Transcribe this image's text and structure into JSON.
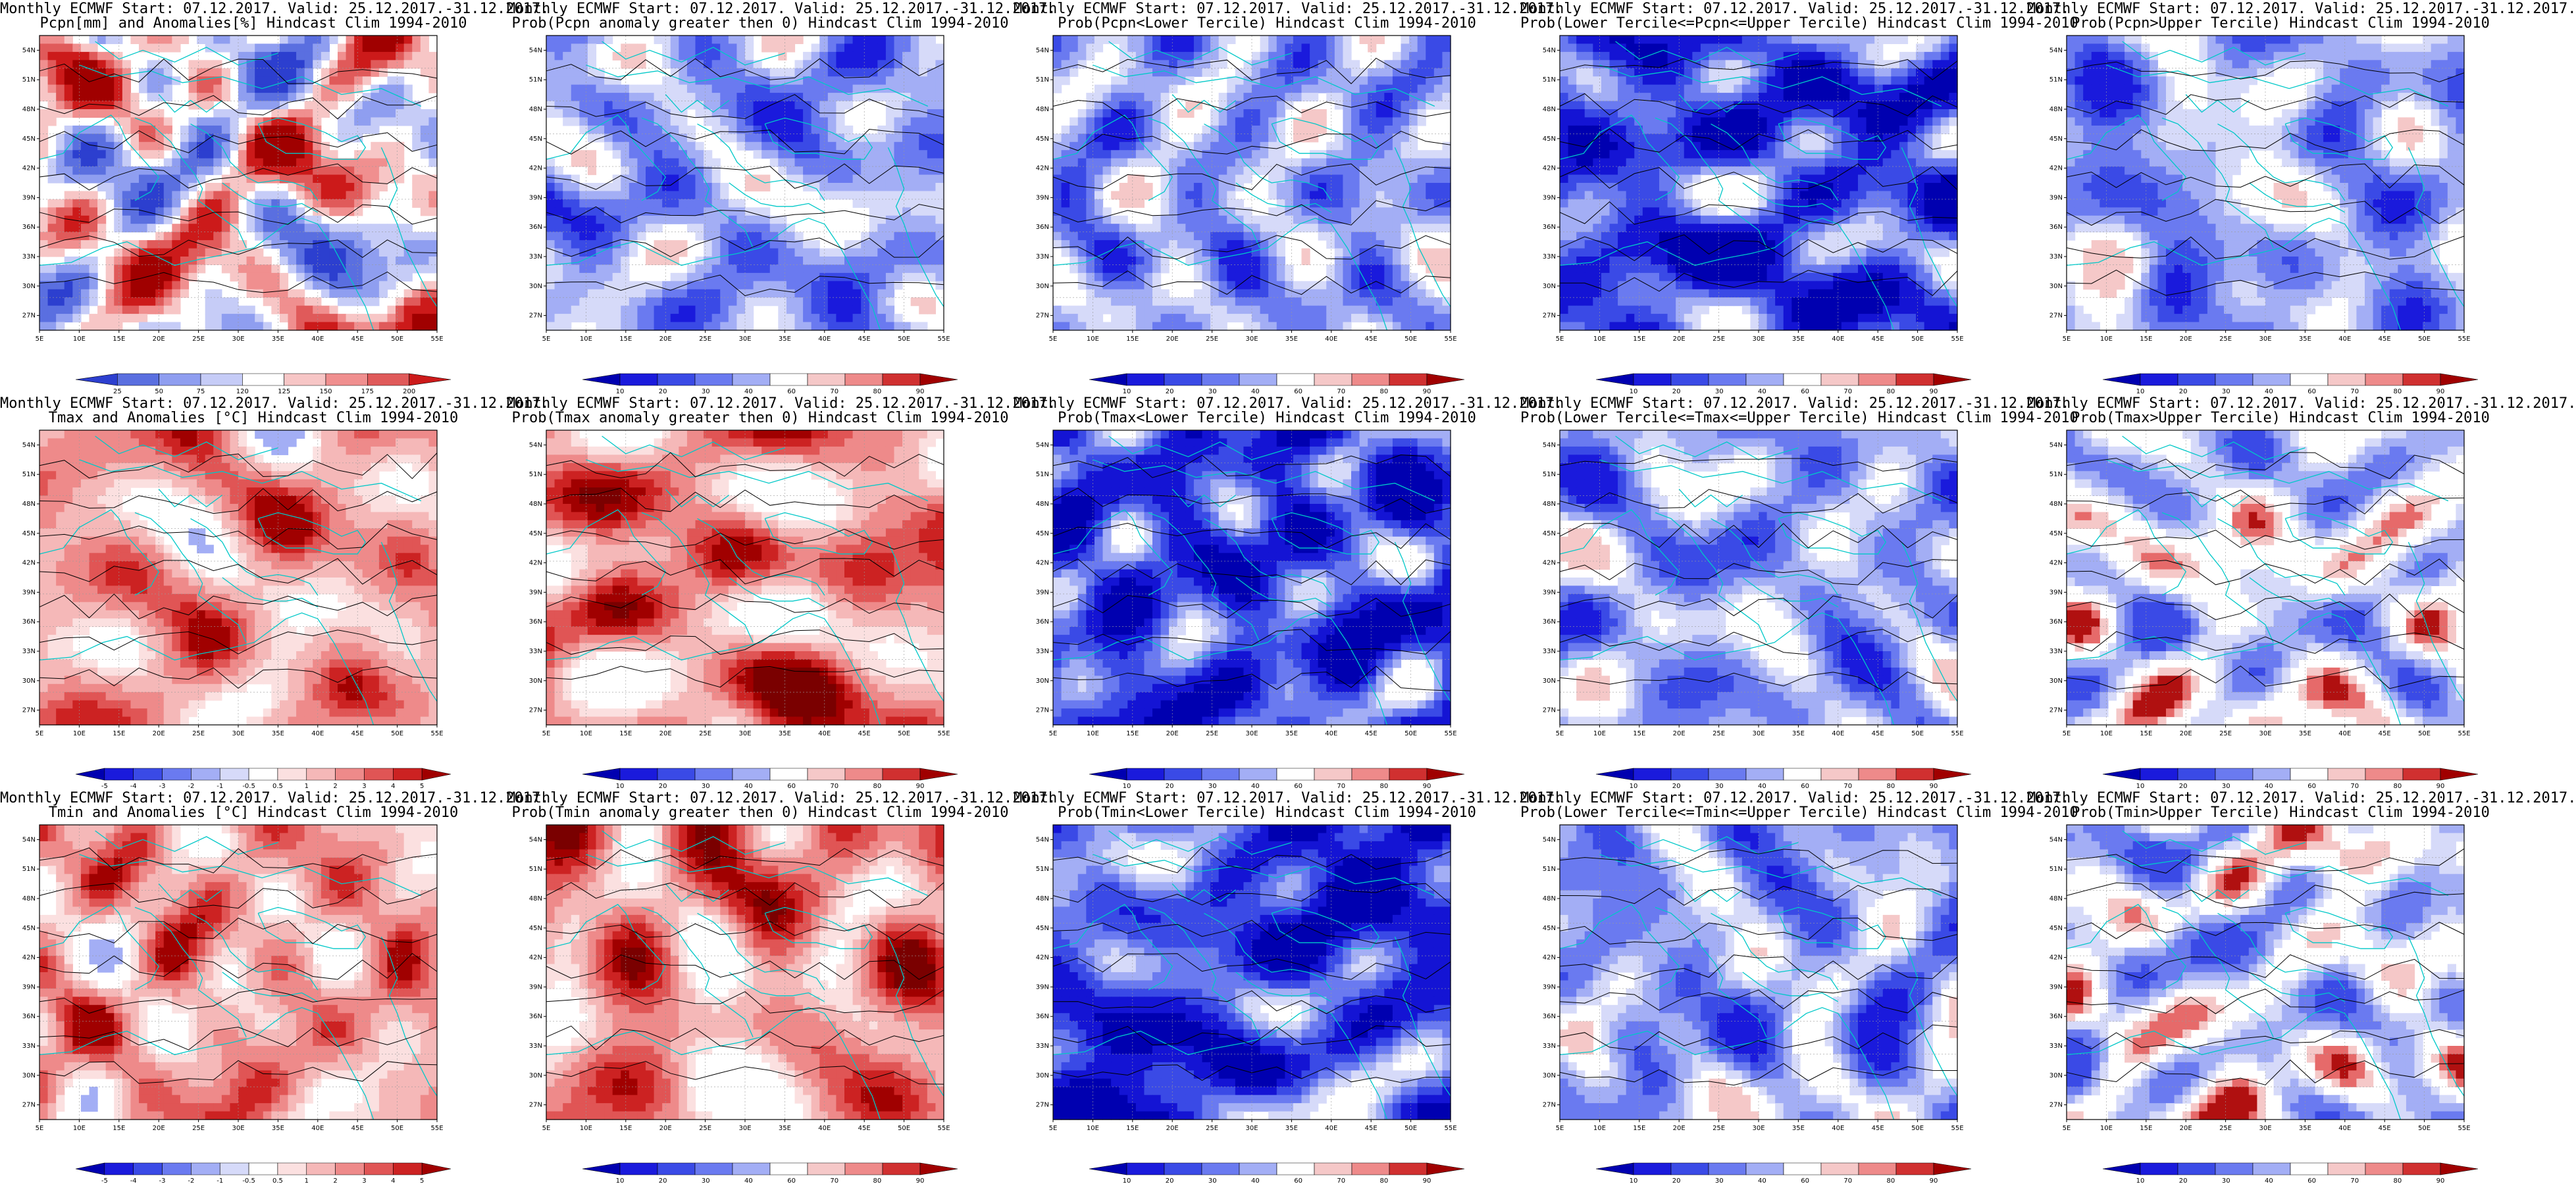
{
  "panels": [
    {
      "row": 0,
      "col": 0,
      "t1": "Monthly ECMWF Start: 07.12.2017. Valid: 25.12.2017.-31.12.2017.",
      "t2": "Pcpn[mm] and Anomalies[%] Hindcast Clim 1994-2010",
      "scheme": "pcpn_anom",
      "cb": [
        "25",
        "50",
        "75",
        "120",
        "125",
        "150",
        "175",
        "200"
      ]
    },
    {
      "row": 0,
      "col": 1,
      "t1": "Monthly ECMWF Start: 07.12.2017. Valid: 25.12.2017.-31.12.2017.",
      "t2": "Prob(Pcpn anomaly greater then 0) Hindcast Clim 1994-2010",
      "scheme": "prob_cool",
      "cb": [
        "10",
        "20",
        "30",
        "40",
        "60",
        "70",
        "80",
        "90"
      ]
    },
    {
      "row": 0,
      "col": 2,
      "t1": "Monthly ECMWF Start: 07.12.2017. Valid: 25.12.2017.-31.12.2017.",
      "t2": "Prob(Pcpn<Lower Tercile) Hindcast Clim 1994-2010",
      "scheme": "prob_cool",
      "cb": [
        "10",
        "20",
        "30",
        "40",
        "60",
        "70",
        "80",
        "90"
      ]
    },
    {
      "row": 0,
      "col": 3,
      "t1": "Monthly ECMWF Start: 07.12.2017. Valid: 25.12.2017.-31.12.2017.",
      "t2": "Prob(Lower Tercile<=Pcpn<=Upper Tercile) Hindcast Clim 1994-2010",
      "scheme": "prob_vcool",
      "cb": [
        "10",
        "20",
        "30",
        "40",
        "60",
        "70",
        "80",
        "90"
      ]
    },
    {
      "row": 0,
      "col": 4,
      "t1": "Monthly ECMWF Start: 07.12.2017. Valid: 25.12.2017.-31.12.2017.",
      "t2": "Prob(Pcpn>Upper Tercile) Hindcast Clim 1994-2010",
      "scheme": "prob_cool",
      "cb": [
        "10",
        "20",
        "30",
        "40",
        "60",
        "70",
        "80",
        "90"
      ]
    },
    {
      "row": 1,
      "col": 0,
      "t1": "Monthly ECMWF Start: 07.12.2017. Valid: 25.12.2017.-31.12.2017.",
      "t2": "Tmax and Anomalies [°C] Hindcast Clim 1994-2010",
      "scheme": "t_anom",
      "cb": [
        "-5",
        "-4",
        "-3",
        "-2",
        "-1",
        "-0.5",
        "0.5",
        "1",
        "2",
        "3",
        "4",
        "5"
      ]
    },
    {
      "row": 1,
      "col": 1,
      "t1": "Monthly ECMWF Start: 07.12.2017. Valid: 25.12.2017.-31.12.2017.",
      "t2": "Prob(Tmax anomaly greater then 0) Hindcast Clim 1994-2010",
      "scheme": "prob_warm",
      "cb": [
        "10",
        "20",
        "30",
        "40",
        "60",
        "70",
        "80",
        "90"
      ]
    },
    {
      "row": 1,
      "col": 2,
      "t1": "Monthly ECMWF Start: 07.12.2017. Valid: 25.12.2017.-31.12.2017.",
      "t2": "Prob(Tmax<Lower Tercile) Hindcast Clim 1994-2010",
      "scheme": "prob_vcool",
      "cb": [
        "10",
        "20",
        "30",
        "40",
        "60",
        "70",
        "80",
        "90"
      ]
    },
    {
      "row": 1,
      "col": 3,
      "t1": "Monthly ECMWF Start: 07.12.2017. Valid: 25.12.2017.-31.12.2017.",
      "t2": "Prob(Lower Tercile<=Tmax<=Upper Tercile) Hindcast Clim 1994-2010",
      "scheme": "prob_cool",
      "cb": [
        "10",
        "20",
        "30",
        "40",
        "60",
        "70",
        "80",
        "90"
      ]
    },
    {
      "row": 1,
      "col": 4,
      "t1": "Monthly ECMWF Start: 07.12.2017. Valid: 25.12.2017.-31.12.2017.",
      "t2": "Prob(Tmax>Upper Tercile) Hindcast Clim 1994-2010",
      "scheme": "prob_mixed",
      "cb": [
        "10",
        "20",
        "30",
        "40",
        "60",
        "70",
        "80",
        "90"
      ]
    },
    {
      "row": 2,
      "col": 0,
      "t1": "Monthly ECMWF Start: 07.12.2017. Valid: 25.12.2017.-31.12.2017.",
      "t2": "Tmin and Anomalies [°C] Hindcast Clim 1994-2010",
      "scheme": "t_anom",
      "cb": [
        "-5",
        "-4",
        "-3",
        "-2",
        "-1",
        "-0.5",
        "0.5",
        "1",
        "2",
        "3",
        "4",
        "5"
      ]
    },
    {
      "row": 2,
      "col": 1,
      "t1": "Monthly ECMWF Start: 07.12.2017. Valid: 25.12.2017.-31.12.2017.",
      "t2": "Prob(Tmin anomaly greater then 0) Hindcast Clim 1994-2010",
      "scheme": "prob_warm",
      "cb": [
        "10",
        "20",
        "30",
        "40",
        "60",
        "70",
        "80",
        "90"
      ]
    },
    {
      "row": 2,
      "col": 2,
      "t1": "Monthly ECMWF Start: 07.12.2017. Valid: 25.12.2017.-31.12.2017.",
      "t2": "Prob(Tmin<Lower Tercile) Hindcast Clim 1994-2010",
      "scheme": "prob_vcool",
      "cb": [
        "10",
        "20",
        "30",
        "40",
        "60",
        "70",
        "80",
        "90"
      ]
    },
    {
      "row": 2,
      "col": 3,
      "t1": "Monthly ECMWF Start: 07.12.2017. Valid: 25.12.2017.-31.12.2017.",
      "t2": "Prob(Lower Tercile<=Tmin<=Upper Tercile) Hindcast Clim 1994-2010",
      "scheme": "prob_cool",
      "cb": [
        "10",
        "20",
        "30",
        "40",
        "60",
        "70",
        "80",
        "90"
      ]
    },
    {
      "row": 2,
      "col": 4,
      "t1": "Monthly ECMWF Start: 07.12.2017. Valid: 25.12.2017.-31.12.2017.",
      "t2": "Prob(Tmin>Upper Tercile) Hindcast Clim 1994-2010",
      "scheme": "prob_mixed",
      "cb": [
        "10",
        "20",
        "30",
        "40",
        "60",
        "70",
        "80",
        "90"
      ]
    }
  ],
  "lon_labels": [
    "5E",
    "10E",
    "15E",
    "20E",
    "25E",
    "30E",
    "35E",
    "40E",
    "45E",
    "50E",
    "55E"
  ],
  "lat_labels": [
    "54N",
    "51N",
    "48N",
    "45N",
    "42N",
    "39N",
    "36N",
    "33N",
    "30N",
    "27N"
  ],
  "schemes": {
    "pcpn_anom": {
      "colors": [
        "#2c3fcf",
        "#5a6fe0",
        "#8f9ef0",
        "#c6ccf7",
        "#ffffff",
        "#f7c6c6",
        "#f08f8f",
        "#e05a5a",
        "#cc1a1a",
        "#a00000"
      ],
      "weights": [
        0.04,
        0.08,
        0.12,
        0.12,
        0.2,
        0.14,
        0.1,
        0.08,
        0.07,
        0.05
      ]
    },
    "prob_cool": {
      "colors": [
        "#1a1adc",
        "#3a4ae6",
        "#6a7af0",
        "#a3aef5",
        "#d6daf9",
        "#ffffff",
        "#f5c8c8"
      ],
      "weights": [
        0.05,
        0.12,
        0.24,
        0.24,
        0.16,
        0.16,
        0.03
      ]
    },
    "prob_vcool": {
      "colors": [
        "#0000b0",
        "#1414d4",
        "#3a4ae6",
        "#6a7af0",
        "#a3aef5",
        "#d6daf9",
        "#ffffff"
      ],
      "weights": [
        0.18,
        0.24,
        0.22,
        0.16,
        0.1,
        0.06,
        0.04
      ]
    },
    "prob_warm": {
      "colors": [
        "#ffffff",
        "#fbe0e0",
        "#f5b8b8",
        "#ee8a8a",
        "#e05555",
        "#cc2222",
        "#a00000",
        "#7a0000"
      ],
      "weights": [
        0.14,
        0.12,
        0.2,
        0.2,
        0.14,
        0.1,
        0.06,
        0.04
      ]
    },
    "prob_mixed": {
      "colors": [
        "#3a4ae6",
        "#6a7af0",
        "#a3aef5",
        "#d6daf9",
        "#ffffff",
        "#f5c8c8",
        "#e66a6a",
        "#b01010"
      ],
      "weights": [
        0.06,
        0.14,
        0.18,
        0.16,
        0.3,
        0.08,
        0.05,
        0.03
      ]
    },
    "t_anom": {
      "colors": [
        "#a3aef5",
        "#ffffff",
        "#fbe0e0",
        "#f5b8b8",
        "#ee8a8a",
        "#e05555",
        "#cc2222",
        "#a00000"
      ],
      "weights": [
        0.01,
        0.12,
        0.14,
        0.26,
        0.24,
        0.12,
        0.07,
        0.04
      ]
    }
  },
  "cbar_colors": {
    "pcpn_anom": [
      "#2c3fcf",
      "#5a6fe0",
      "#8f9ef0",
      "#c6ccf7",
      "#ffffff",
      "#f7c6c6",
      "#f08f8f",
      "#e05a5a",
      "#cc1a1a"
    ],
    "prob_cool": [
      "#0000b0",
      "#1a1adc",
      "#3a4ae6",
      "#6a7af0",
      "#a3aef5",
      "#ffffff",
      "#f5c8c8",
      "#ee8a8a",
      "#d03030",
      "#a00000"
    ],
    "prob_vcool": [
      "#0000b0",
      "#1a1adc",
      "#3a4ae6",
      "#6a7af0",
      "#a3aef5",
      "#ffffff",
      "#f5c8c8",
      "#ee8a8a",
      "#d03030",
      "#a00000"
    ],
    "prob_warm": [
      "#0000b0",
      "#1a1adc",
      "#3a4ae6",
      "#6a7af0",
      "#a3aef5",
      "#ffffff",
      "#f5c8c8",
      "#ee8a8a",
      "#d03030",
      "#a00000"
    ],
    "prob_mixed": [
      "#0000b0",
      "#1a1adc",
      "#3a4ae6",
      "#6a7af0",
      "#a3aef5",
      "#ffffff",
      "#f5c8c8",
      "#ee8a8a",
      "#d03030",
      "#a00000"
    ],
    "t_anom": [
      "#0000b0",
      "#1a1adc",
      "#3a4ae6",
      "#6a7af0",
      "#a3aef5",
      "#d6daf9",
      "#ffffff",
      "#fbe0e0",
      "#f5b8b8",
      "#ee8a8a",
      "#e05555",
      "#cc2222",
      "#a00000"
    ]
  },
  "colors": {
    "coast": "#00c8c8",
    "contour": "#000000",
    "frame": "#000000"
  }
}
